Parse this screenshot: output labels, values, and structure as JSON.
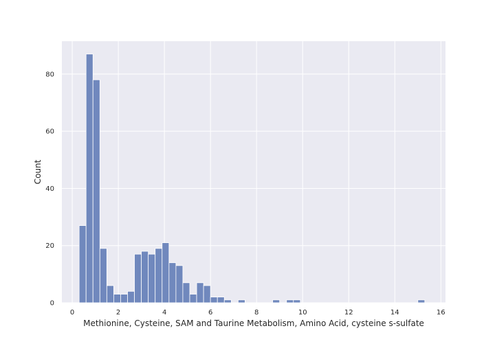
{
  "chart_data": {
    "type": "bar",
    "subtype": "histogram",
    "title": "",
    "xlabel": "Methionine, Cysteine, SAM and Taurine Metabolism, Amino Acid, cysteine s-sulfate",
    "ylabel": "Count",
    "xlim": [
      -0.45,
      16.2
    ],
    "ylim": [
      0,
      91.5
    ],
    "x_ticks": [
      0,
      2,
      4,
      6,
      8,
      10,
      12,
      14,
      16
    ],
    "y_ticks": [
      0,
      20,
      40,
      60,
      80
    ],
    "grid": true,
    "legend": "none",
    "bin_width": 0.3,
    "bins": [
      {
        "x0": 0.3,
        "x1": 0.6,
        "count": 27
      },
      {
        "x0": 0.6,
        "x1": 0.9,
        "count": 87
      },
      {
        "x0": 0.9,
        "x1": 1.2,
        "count": 78
      },
      {
        "x0": 1.2,
        "x1": 1.5,
        "count": 19
      },
      {
        "x0": 1.5,
        "x1": 1.8,
        "count": 6
      },
      {
        "x0": 1.8,
        "x1": 2.1,
        "count": 3
      },
      {
        "x0": 2.1,
        "x1": 2.4,
        "count": 3
      },
      {
        "x0": 2.4,
        "x1": 2.7,
        "count": 4
      },
      {
        "x0": 2.7,
        "x1": 3.0,
        "count": 17
      },
      {
        "x0": 3.0,
        "x1": 3.3,
        "count": 18
      },
      {
        "x0": 3.3,
        "x1": 3.6,
        "count": 17
      },
      {
        "x0": 3.6,
        "x1": 3.9,
        "count": 19
      },
      {
        "x0": 3.9,
        "x1": 4.2,
        "count": 21
      },
      {
        "x0": 4.2,
        "x1": 4.5,
        "count": 14
      },
      {
        "x0": 4.5,
        "x1": 4.8,
        "count": 13
      },
      {
        "x0": 4.8,
        "x1": 5.1,
        "count": 7
      },
      {
        "x0": 5.1,
        "x1": 5.4,
        "count": 3
      },
      {
        "x0": 5.4,
        "x1": 5.7,
        "count": 7
      },
      {
        "x0": 5.7,
        "x1": 6.0,
        "count": 6
      },
      {
        "x0": 6.0,
        "x1": 6.3,
        "count": 2
      },
      {
        "x0": 6.3,
        "x1": 6.6,
        "count": 2
      },
      {
        "x0": 6.6,
        "x1": 6.9,
        "count": 1
      },
      {
        "x0": 7.2,
        "x1": 7.5,
        "count": 1
      },
      {
        "x0": 8.7,
        "x1": 9.0,
        "count": 1
      },
      {
        "x0": 9.3,
        "x1": 9.6,
        "count": 1
      },
      {
        "x0": 9.6,
        "x1": 9.9,
        "count": 1
      },
      {
        "x0": 15.0,
        "x1": 15.3,
        "count": 1
      }
    ],
    "colors": {
      "plot_background": "#eaeaf2",
      "grid": "#ffffff",
      "bar_fill": "#7088bd",
      "bar_edge": "#ffffff"
    }
  }
}
